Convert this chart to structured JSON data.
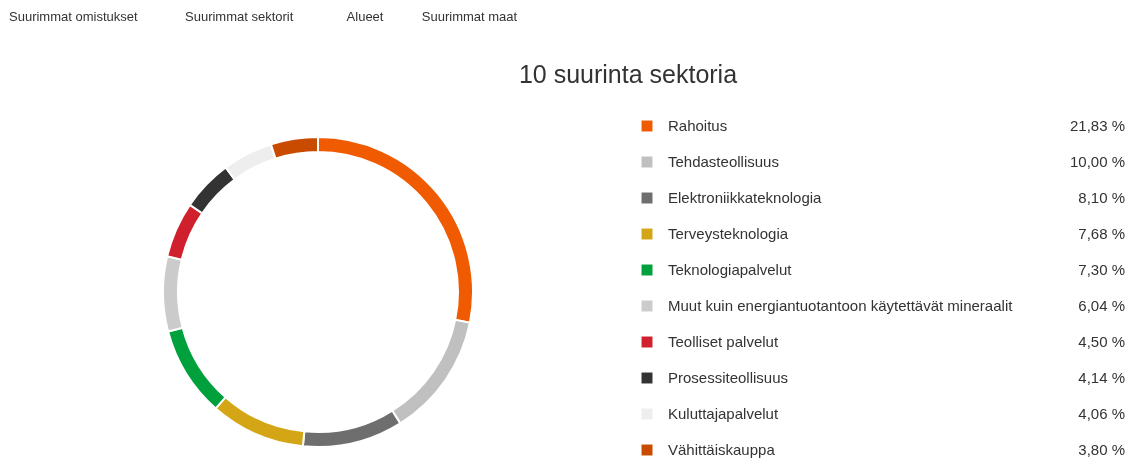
{
  "chart_data": {
    "type": "donut",
    "title": "10 suurinta sektoria",
    "categories": [
      "Rahoitus",
      "Tehdasteollisuus",
      "Elektroniikkateknologia",
      "Terveysteknologia",
      "Teknologiapalvelut",
      "Muut kuin energiantuotantoon käytettävät mineraalit",
      "Teolliset palvelut",
      "Prosessiteollisuus",
      "Kuluttajapalvelut",
      "Vähittäiskauppa"
    ],
    "values": [
      21.83,
      10.0,
      8.1,
      7.68,
      7.3,
      6.04,
      4.5,
      4.14,
      4.06,
      3.8
    ],
    "value_labels": [
      "21,83 %",
      "10,00 %",
      "8,10 %",
      "7,68 %",
      "7,30 %",
      "6,04 %",
      "4,50 %",
      "4,14 %",
      "4,06 %",
      "3,80 %"
    ],
    "colors": [
      "#f05a00",
      "#c0c0c0",
      "#6e6e6e",
      "#d4a514",
      "#00a03c",
      "#cbcbcb",
      "#d0202e",
      "#333333",
      "#eeeeee",
      "#c84b00"
    ],
    "legend": "right",
    "annotations": [
      "Suurimmat omistukset",
      "Suurimmat sektorit",
      "Alueet",
      "Suurimmat maat"
    ]
  }
}
